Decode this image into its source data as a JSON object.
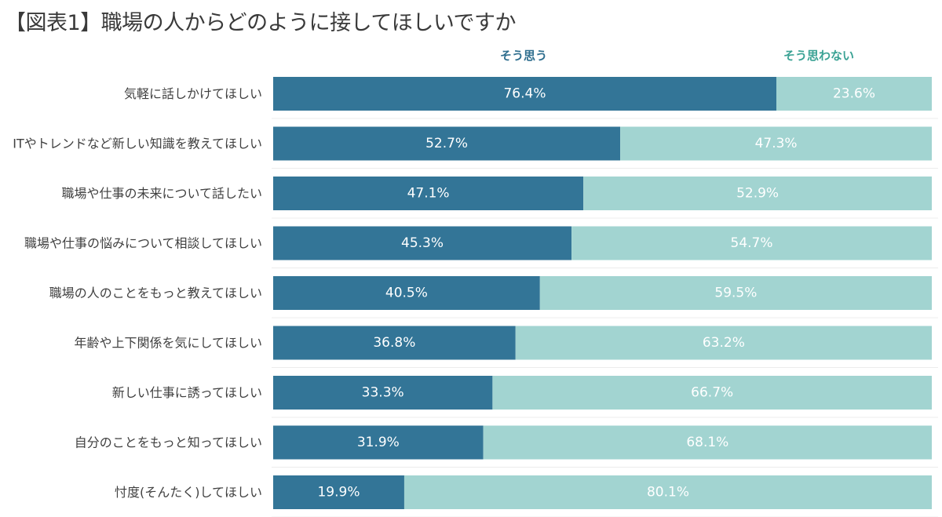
{
  "title": "【図表1】職場の人からどのように接してほしいですか",
  "chart_data": {
    "type": "bar",
    "orientation": "horizontal-stacked-100",
    "title": "【図表1】職場の人からどのように接してほしいですか",
    "categories": [
      "気軽に話しかけてほしい",
      "ITやトレンドなど新しい知識を教えてほしい",
      "職場や仕事の未来について話したい",
      "職場や仕事の悩みについて相談してほしい",
      "職場の人のことをもっと教えてほしい",
      "年齢や上下関係を気にしてほしい",
      "新しい仕事に誘ってほしい",
      "自分のことをもっと知ってほしい",
      "忖度(そんたく)してほしい"
    ],
    "series": [
      {
        "name": "そう思う",
        "color": "#337597",
        "values": [
          76.4,
          52.7,
          47.1,
          45.3,
          40.5,
          36.8,
          33.3,
          31.9,
          19.9
        ],
        "labels": [
          "76.4%",
          "52.7%",
          "47.1%",
          "45.3%",
          "40.5%",
          "36.8%",
          "33.3%",
          "31.9%",
          "19.9%"
        ]
      },
      {
        "name": "そう思わない",
        "color": "#a2d4d1",
        "values": [
          23.6,
          47.3,
          52.9,
          54.7,
          59.5,
          63.2,
          66.7,
          68.1,
          80.1
        ],
        "labels": [
          "23.6%",
          "47.3%",
          "52.9%",
          "54.7%",
          "59.5%",
          "63.2%",
          "66.7%",
          "68.1%",
          "80.1%"
        ]
      }
    ],
    "xlim": [
      0,
      100
    ],
    "legend_position": "top",
    "grid": false
  }
}
